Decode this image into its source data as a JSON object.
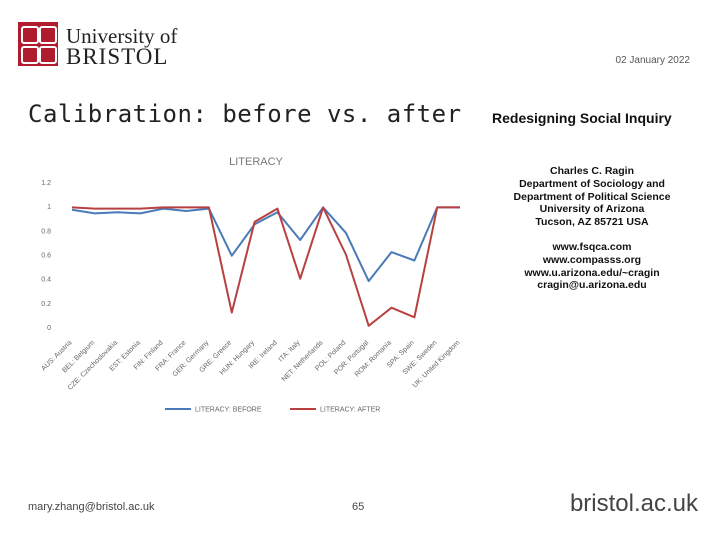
{
  "header": {
    "logo_line1": "University of",
    "logo_line2": "BRISTOL",
    "date": "02 January 2022"
  },
  "slide": {
    "title": "Calibration: before vs. after"
  },
  "sidebar": {
    "book_title": "Redesigning Social Inquiry",
    "author": "Charles C. Ragin",
    "dept1": "Department of Sociology and",
    "dept2": "Department of Political Science",
    "university": "University of Arizona",
    "address": "Tucson, AZ 85721 USA",
    "web1": "www.fsqca.com",
    "web2": "www.compasss.org",
    "web3": "www.u.arizona.edu/~cragin",
    "email": "cragin@u.arizona.edu"
  },
  "footer": {
    "email": "mary.zhang@bristol.ac.uk",
    "page": "65",
    "brand": "bristol.ac.uk"
  },
  "colors": {
    "before": "#4a7ab8",
    "after": "#b84040",
    "accent": "#b01c2e"
  },
  "chart_data": {
    "type": "line",
    "title": "LITERACY",
    "categories": [
      "AUS: Austria",
      "BEL: Belgium",
      "CZE: Czechoslovakia",
      "EST: Estonia",
      "FIN: Finland",
      "FRA: France",
      "GER: Germany",
      "GRE: Greece",
      "HUN: Hungary",
      "IRE: Ireland",
      "ITA: Italy",
      "NET: Netherlands",
      "POL: Poland",
      "POR: Portugal",
      "ROM: Romania",
      "SPA: Spain",
      "SWE: Sweden",
      "UK: United Kingdom"
    ],
    "yticks": [
      "0",
      "0.2",
      "0.4",
      "0.6",
      "0.8",
      "1",
      "1.2"
    ],
    "ylim": [
      0,
      1.2
    ],
    "series": [
      {
        "name": "LITERACY: BEFORE",
        "values": [
          0.97,
          0.94,
          0.95,
          0.94,
          0.98,
          0.96,
          0.98,
          0.59,
          0.85,
          0.95,
          0.72,
          0.99,
          0.78,
          0.38,
          0.62,
          0.55,
          0.99,
          0.99
        ]
      },
      {
        "name": "LITERACY: AFTER",
        "values": [
          0.99,
          0.98,
          0.98,
          0.98,
          0.99,
          0.99,
          0.99,
          0.12,
          0.87,
          0.98,
          0.4,
          0.99,
          0.6,
          0.01,
          0.16,
          0.08,
          0.99,
          0.99
        ]
      }
    ],
    "legend_position": "bottom",
    "grid": false
  }
}
